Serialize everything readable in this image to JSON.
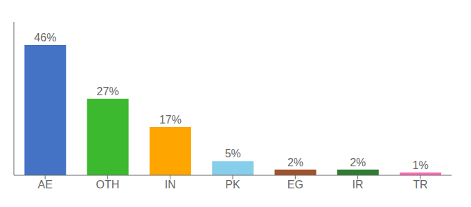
{
  "chart_data": {
    "type": "bar",
    "categories": [
      "AE",
      "OTH",
      "IN",
      "PK",
      "EG",
      "IR",
      "TR"
    ],
    "values": [
      46,
      27,
      17,
      5,
      2,
      2,
      1
    ],
    "value_labels": [
      "46%",
      "27%",
      "17%",
      "5%",
      "2%",
      "2%",
      "1%"
    ],
    "colors": [
      "#4472C4",
      "#3CB92E",
      "#FFA500",
      "#87CEEB",
      "#A0522D",
      "#2E7D32",
      "#FF69B4"
    ],
    "ylim": [
      0,
      54
    ],
    "data_labels": true,
    "tick_labels": "x",
    "grid": false
  }
}
